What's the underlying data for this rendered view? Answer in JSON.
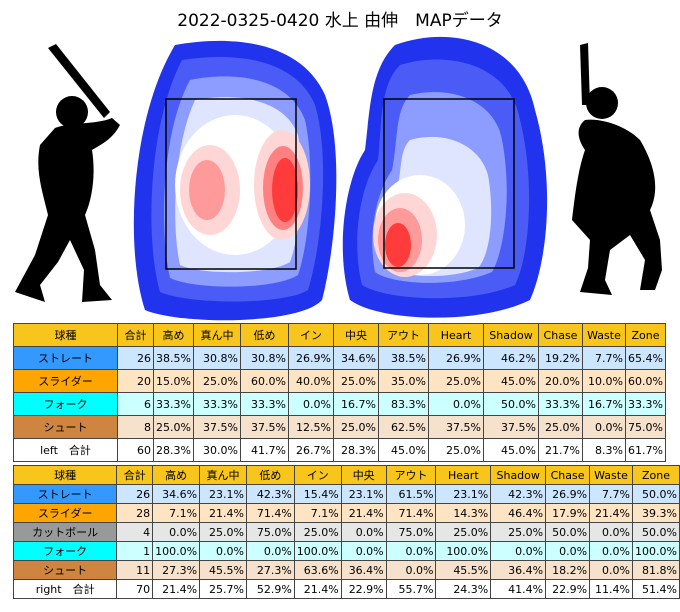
{
  "title": "2022-0325-0420 水上 由伸　MAPデータ",
  "header": [
    "球種",
    "合計",
    "高め",
    "真ん中",
    "低め",
    "イン",
    "中央",
    "アウト",
    "Heart",
    "Shadow",
    "Chase",
    "Waste",
    "Zone"
  ],
  "tables": [
    {
      "rows": [
        {
          "pitch": "ストレート",
          "color": "#3399ff",
          "bg": "#cce6ff",
          "cells": [
            26,
            "38.5%",
            "30.8%",
            "30.8%",
            "26.9%",
            "34.6%",
            "38.5%",
            "26.9%",
            "46.2%",
            "19.2%",
            "7.7%",
            "65.4%"
          ]
        },
        {
          "pitch": "スライダー",
          "color": "#ffa500",
          "bg": "#ffe4c4",
          "cells": [
            20,
            "15.0%",
            "25.0%",
            "60.0%",
            "40.0%",
            "25.0%",
            "35.0%",
            "25.0%",
            "45.0%",
            "20.0%",
            "10.0%",
            "60.0%"
          ]
        },
        {
          "pitch": "フォーク",
          "color": "#00ffff",
          "bg": "#ccffff",
          "cells": [
            6,
            "33.3%",
            "33.3%",
            "33.3%",
            "0.0%",
            "16.7%",
            "83.3%",
            "0.0%",
            "50.0%",
            "33.3%",
            "16.7%",
            "33.3%"
          ]
        },
        {
          "pitch": "シュート",
          "color": "#cd853f",
          "bg": "#f5e1cc",
          "cells": [
            8,
            "25.0%",
            "37.5%",
            "37.5%",
            "12.5%",
            "25.0%",
            "62.5%",
            "37.5%",
            "37.5%",
            "25.0%",
            "0.0%",
            "75.0%"
          ]
        },
        {
          "pitch": "left　合計",
          "color": "#ffffff",
          "bg": "#ffffff",
          "cells": [
            60,
            "28.3%",
            "30.0%",
            "41.7%",
            "26.7%",
            "28.3%",
            "45.0%",
            "25.0%",
            "45.0%",
            "21.7%",
            "8.3%",
            "61.7%"
          ]
        }
      ]
    },
    {
      "rows": [
        {
          "pitch": "ストレート",
          "color": "#3399ff",
          "bg": "#cce6ff",
          "cells": [
            26,
            "34.6%",
            "23.1%",
            "42.3%",
            "15.4%",
            "23.1%",
            "61.5%",
            "23.1%",
            "42.3%",
            "26.9%",
            "7.7%",
            "50.0%"
          ]
        },
        {
          "pitch": "スライダー",
          "color": "#ffa500",
          "bg": "#ffe4c4",
          "cells": [
            28,
            "7.1%",
            "21.4%",
            "71.4%",
            "7.1%",
            "21.4%",
            "71.4%",
            "14.3%",
            "46.4%",
            "17.9%",
            "21.4%",
            "39.3%"
          ]
        },
        {
          "pitch": "カットボール",
          "color": "#999999",
          "bg": "#e6e6e6",
          "cells": [
            4,
            "0.0%",
            "25.0%",
            "75.0%",
            "25.0%",
            "0.0%",
            "75.0%",
            "25.0%",
            "25.0%",
            "50.0%",
            "0.0%",
            "50.0%"
          ]
        },
        {
          "pitch": "フォーク",
          "color": "#00ffff",
          "bg": "#ccffff",
          "cells": [
            1,
            "100.0%",
            "0.0%",
            "0.0%",
            "100.0%",
            "0.0%",
            "0.0%",
            "100.0%",
            "0.0%",
            "0.0%",
            "0.0%",
            "100.0%"
          ]
        },
        {
          "pitch": "シュート",
          "color": "#cd853f",
          "bg": "#f5e1cc",
          "cells": [
            11,
            "27.3%",
            "45.5%",
            "27.3%",
            "63.6%",
            "36.4%",
            "0.0%",
            "45.5%",
            "36.4%",
            "18.2%",
            "0.0%",
            "81.8%"
          ]
        },
        {
          "pitch": "right　合計",
          "color": "#ffffff",
          "bg": "#ffffff",
          "cells": [
            70,
            "21.4%",
            "25.7%",
            "52.9%",
            "21.4%",
            "22.9%",
            "55.7%",
            "24.3%",
            "41.4%",
            "22.9%",
            "11.4%",
            "51.4%"
          ]
        }
      ]
    }
  ]
}
